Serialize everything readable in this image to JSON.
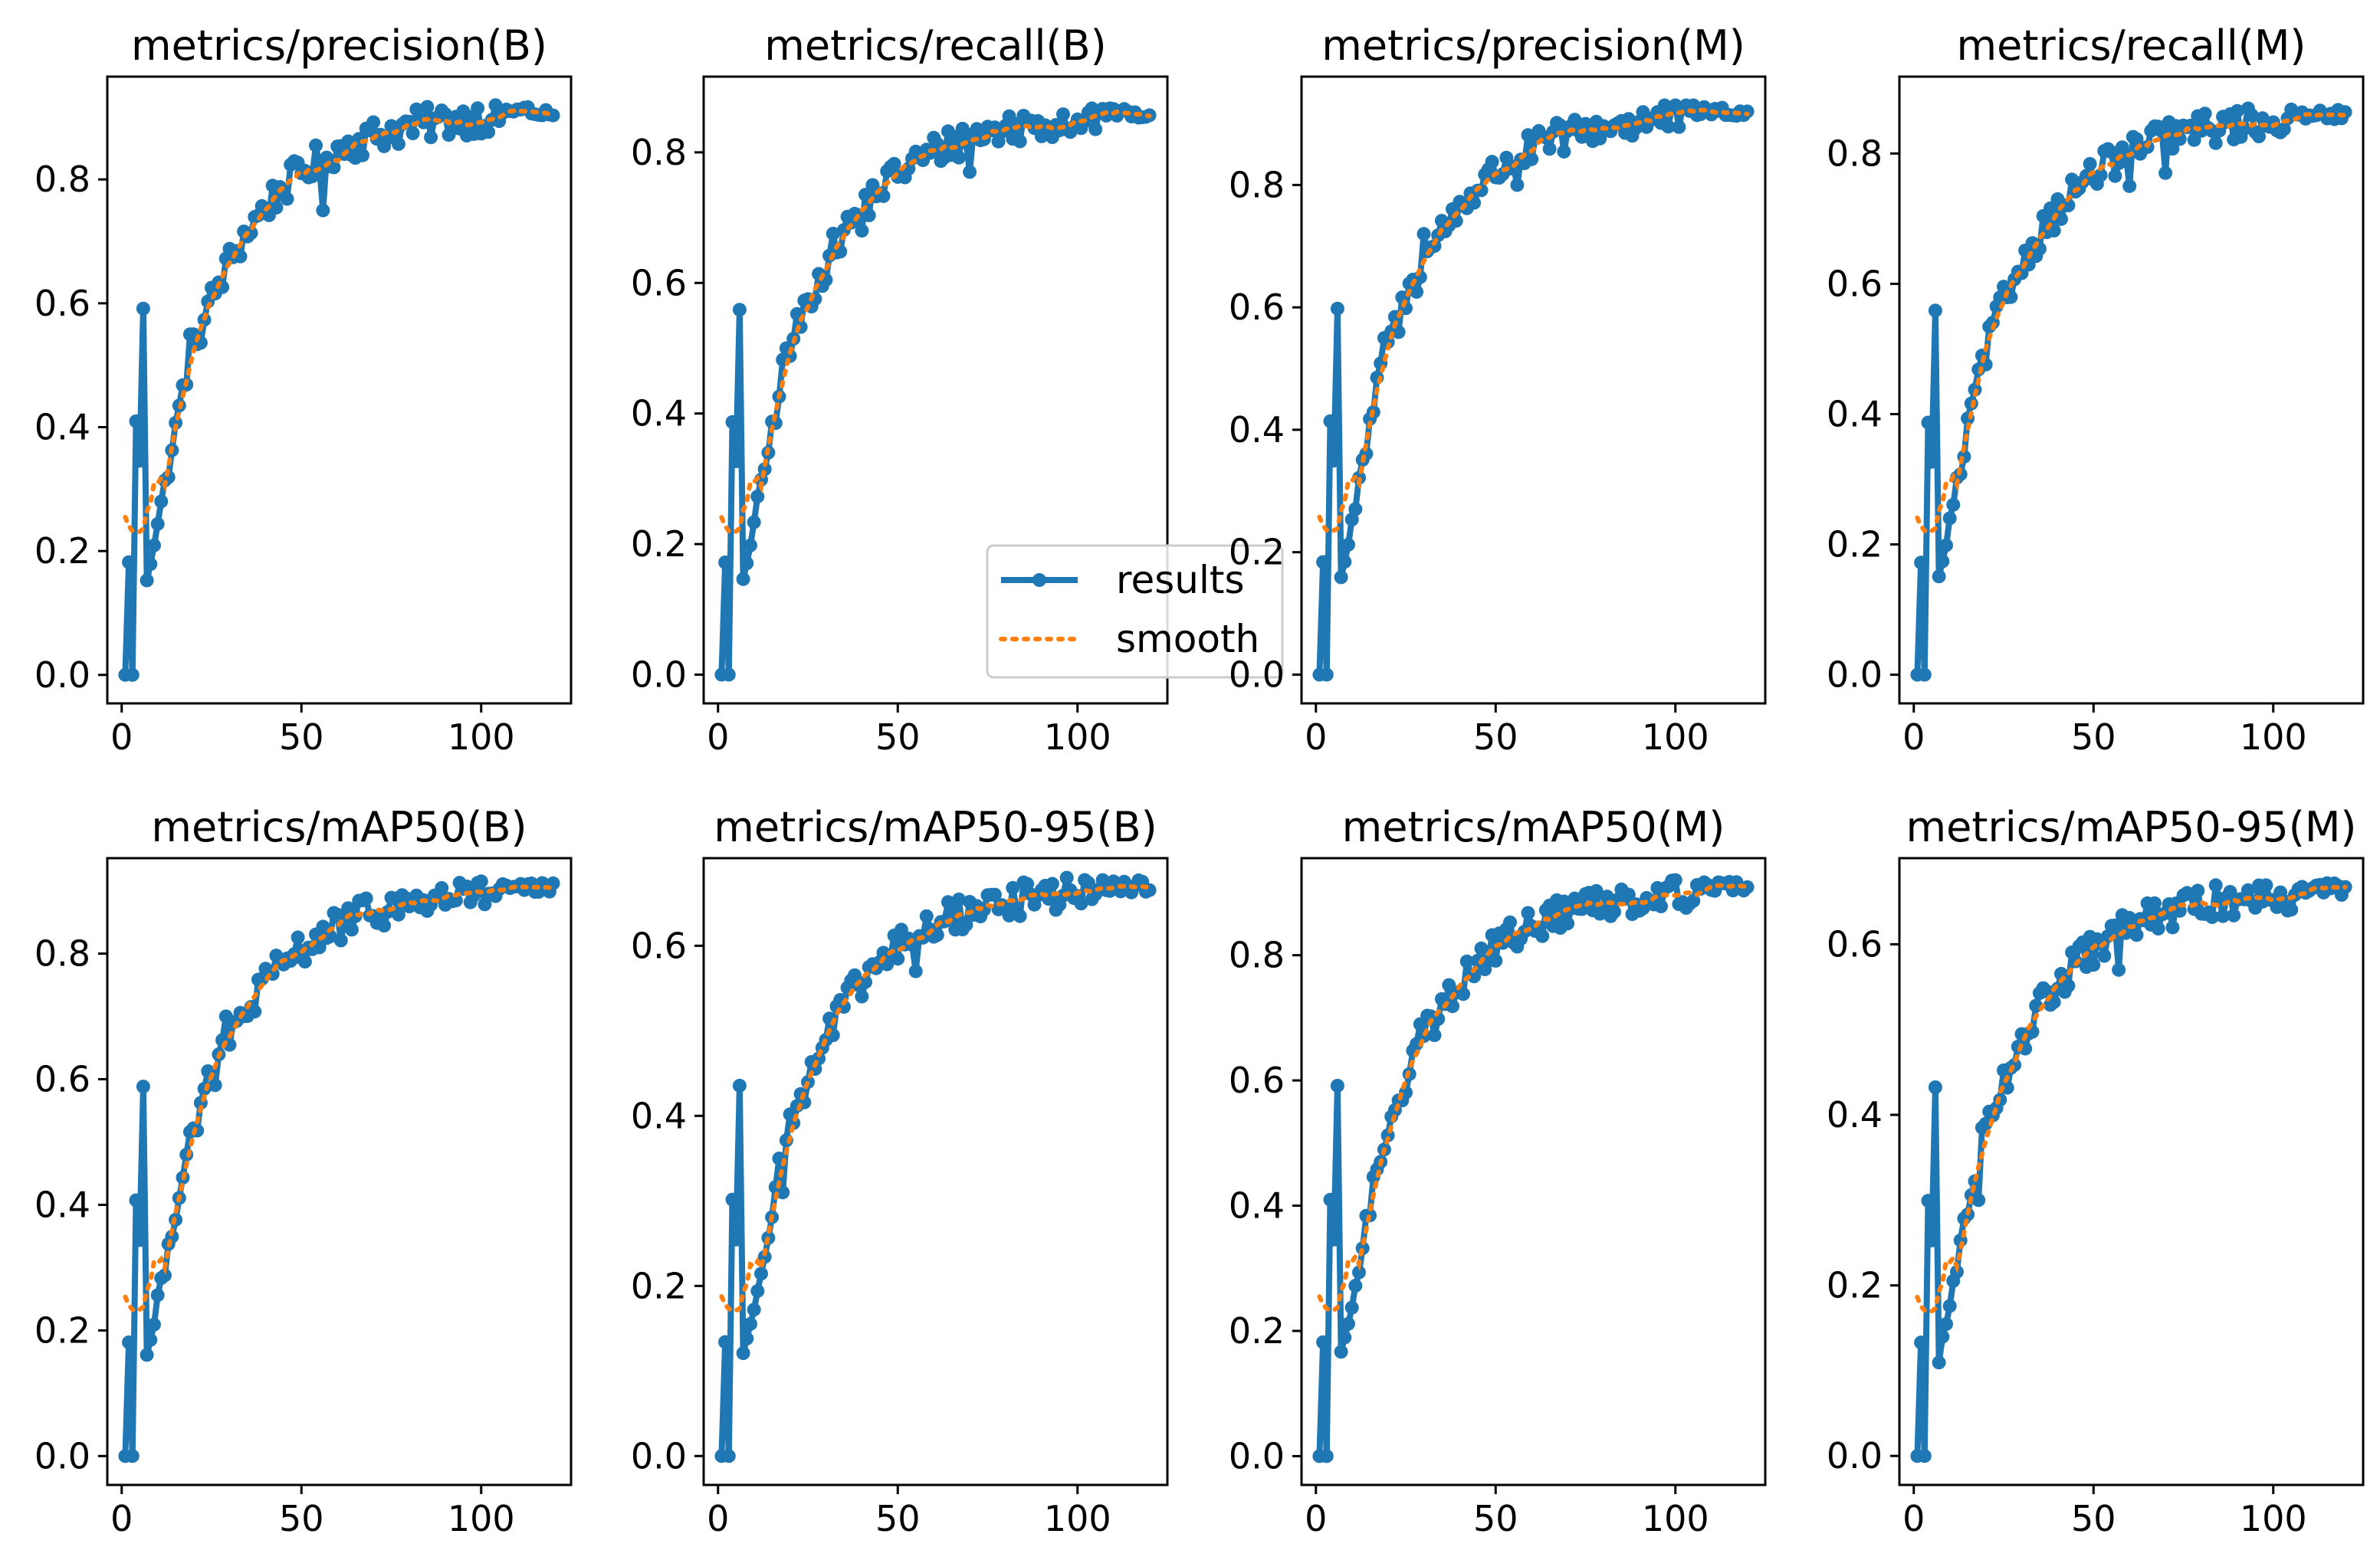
{
  "figure": {
    "colors": {
      "results": "#1f77b4",
      "smooth": "#ff7f0e",
      "axes": "#000000",
      "background": "#ffffff"
    }
  },
  "legend": {
    "location": "lower-right of metrics/recall(B) panel",
    "entries": [
      {
        "label": "results",
        "style": "solid line with circle markers",
        "color": "#1f77b4"
      },
      {
        "label": "smooth",
        "style": "dotted line",
        "color": "#ff7f0e"
      }
    ]
  },
  "chart_data": [
    {
      "type": "line",
      "title": "metrics/precision(B)",
      "xlabel": "",
      "ylabel": "",
      "xlim": [
        -4,
        125
      ],
      "ylim": [
        -0.046,
        0.966
      ],
      "xticks": [
        0,
        50,
        100
      ],
      "xtick_labels": [
        "0",
        "50",
        "100"
      ],
      "yticks": [
        0,
        0.2,
        0.4,
        0.6,
        0.8
      ],
      "ytick_labels": [
        "0.0",
        "0.2",
        "0.4",
        "0.6",
        "0.8"
      ],
      "grid": false,
      "ref_final": 0.91,
      "ref_dips": [
        [
          19,
          0.55
        ],
        [
          56,
          0.75
        ]
      ]
    },
    {
      "type": "line",
      "title": "metrics/recall(B)",
      "xlabel": "",
      "ylabel": "",
      "xlim": [
        -4,
        125
      ],
      "ylim": [
        -0.044,
        0.916
      ],
      "xticks": [
        0,
        50,
        100
      ],
      "xtick_labels": [
        "0",
        "50",
        "100"
      ],
      "yticks": [
        0,
        0.2,
        0.4,
        0.6,
        0.8
      ],
      "ytick_labels": [
        "0.0",
        "0.2",
        "0.4",
        "0.6",
        "0.8"
      ],
      "grid": false,
      "legend": true,
      "ref_final": 0.86,
      "ref_dips": [
        [
          19,
          0.5
        ],
        [
          40,
          0.68
        ],
        [
          70,
          0.77
        ]
      ]
    },
    {
      "type": "line",
      "title": "metrics/precision(M)",
      "xlabel": "",
      "ylabel": "",
      "xlim": [
        -4,
        125
      ],
      "ylim": [
        -0.047,
        0.977
      ],
      "xticks": [
        0,
        50,
        100
      ],
      "xtick_labels": [
        "0",
        "50",
        "100"
      ],
      "yticks": [
        0,
        0.2,
        0.4,
        0.6,
        0.8
      ],
      "ytick_labels": [
        "0.0",
        "0.2",
        "0.4",
        "0.6",
        "0.8"
      ],
      "grid": false,
      "ref_final": 0.92,
      "ref_dips": [
        [
          19,
          0.55
        ],
        [
          30,
          0.72
        ],
        [
          56,
          0.8
        ]
      ]
    },
    {
      "type": "line",
      "title": "metrics/recall(M)",
      "xlabel": "",
      "ylabel": "",
      "xlim": [
        -4,
        125
      ],
      "ylim": [
        -0.044,
        0.918
      ],
      "xticks": [
        0,
        50,
        100
      ],
      "xtick_labels": [
        "0",
        "50",
        "100"
      ],
      "yticks": [
        0,
        0.2,
        0.4,
        0.6,
        0.8
      ],
      "ytick_labels": [
        "0.0",
        "0.2",
        "0.4",
        "0.6",
        "0.8"
      ],
      "grid": false,
      "ref_final": 0.86,
      "ref_dips": [
        [
          19,
          0.49
        ],
        [
          50,
          0.76
        ],
        [
          60,
          0.75
        ],
        [
          70,
          0.77
        ]
      ]
    },
    {
      "type": "line",
      "title": "metrics/mAP50(B)",
      "xlabel": "",
      "ylabel": "",
      "xlim": [
        -4,
        125
      ],
      "ylim": [
        -0.046,
        0.952
      ],
      "xticks": [
        0,
        50,
        100
      ],
      "xtick_labels": [
        "0",
        "50",
        "100"
      ],
      "yticks": [
        0,
        0.2,
        0.4,
        0.6,
        0.8
      ],
      "ytick_labels": [
        "0.0",
        "0.2",
        "0.4",
        "0.6",
        "0.8"
      ],
      "grid": false,
      "ref_final": 0.905,
      "ref_dips": [
        [
          18,
          0.48
        ],
        [
          29,
          0.7
        ],
        [
          55,
          0.81
        ]
      ]
    },
    {
      "type": "line",
      "title": "metrics/mAP50-95(B)",
      "xlabel": "",
      "ylabel": "",
      "xlim": [
        -4,
        125
      ],
      "ylim": [
        -0.034,
        0.703
      ],
      "xticks": [
        0,
        50,
        100
      ],
      "xtick_labels": [
        "0",
        "50",
        "100"
      ],
      "yticks": [
        0,
        0.2,
        0.4,
        0.6
      ],
      "ytick_labels": [
        "0.0",
        "0.2",
        "0.4",
        "0.6"
      ],
      "grid": false,
      "ref_final": 0.67,
      "ref_dips": [
        [
          18,
          0.31
        ],
        [
          29,
          0.48
        ],
        [
          55,
          0.57
        ]
      ]
    },
    {
      "type": "line",
      "title": "metrics/mAP50(M)",
      "xlabel": "",
      "ylabel": "",
      "xlim": [
        -4,
        125
      ],
      "ylim": [
        -0.046,
        0.955
      ],
      "xticks": [
        0,
        50,
        100
      ],
      "xtick_labels": [
        "0",
        "50",
        "100"
      ],
      "yticks": [
        0,
        0.2,
        0.4,
        0.6,
        0.8
      ],
      "ytick_labels": [
        "0.0",
        "0.2",
        "0.4",
        "0.6",
        "0.8"
      ],
      "grid": false,
      "ref_final": 0.91,
      "ref_dips": [
        [
          18,
          0.47
        ],
        [
          29,
          0.69
        ],
        [
          55,
          0.82
        ]
      ]
    },
    {
      "type": "line",
      "title": "metrics/mAP50-95(M)",
      "xlabel": "",
      "ylabel": "",
      "xlim": [
        -4,
        125
      ],
      "ylim": [
        -0.034,
        0.701
      ],
      "xticks": [
        0,
        50,
        100
      ],
      "xtick_labels": [
        "0",
        "50",
        "100"
      ],
      "yticks": [
        0,
        0.2,
        0.4,
        0.6
      ],
      "ytick_labels": [
        "0.0",
        "0.2",
        "0.4",
        "0.6"
      ],
      "grid": false,
      "ref_final": 0.665,
      "ref_dips": [
        [
          18,
          0.3
        ],
        [
          29,
          0.48
        ],
        [
          57,
          0.57
        ]
      ]
    }
  ]
}
